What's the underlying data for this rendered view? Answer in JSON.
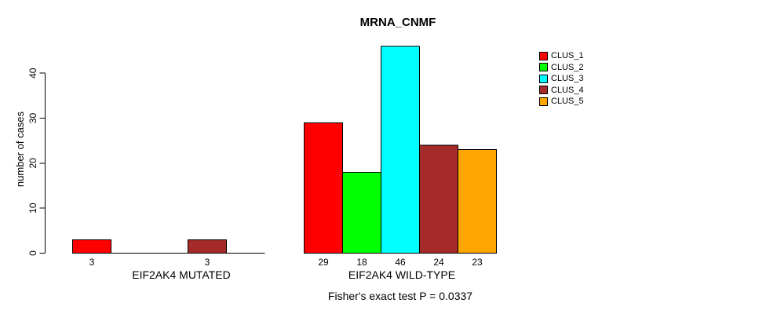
{
  "chart_data": {
    "type": "bar",
    "title": "MRNA_CNMF",
    "ylabel": "number of cases",
    "ylim": [
      0,
      46
    ],
    "yticks": [
      0,
      10,
      20,
      30,
      40
    ],
    "grid": false,
    "legend_position": "right",
    "clusters": [
      {
        "name": "CLUS_1",
        "color": "#FF0000"
      },
      {
        "name": "CLUS_2",
        "color": "#00FF00"
      },
      {
        "name": "CLUS_3",
        "color": "#00FFFF"
      },
      {
        "name": "CLUS_4",
        "color": "#A52A2A"
      },
      {
        "name": "CLUS_5",
        "color": "#FFA500"
      }
    ],
    "groups": [
      {
        "label": "EIF2AK4 MUTATED",
        "values": [
          3,
          0,
          0,
          3,
          0
        ],
        "bar_labels": [
          "3",
          "",
          "",
          "3",
          ""
        ]
      },
      {
        "label": "EIF2AK4 WILD-TYPE",
        "values": [
          29,
          18,
          46,
          24,
          23
        ],
        "bar_labels": [
          "29",
          "18",
          "46",
          "24",
          "23"
        ]
      }
    ],
    "annotation": "Fisher's exact test P = 0.0337"
  }
}
